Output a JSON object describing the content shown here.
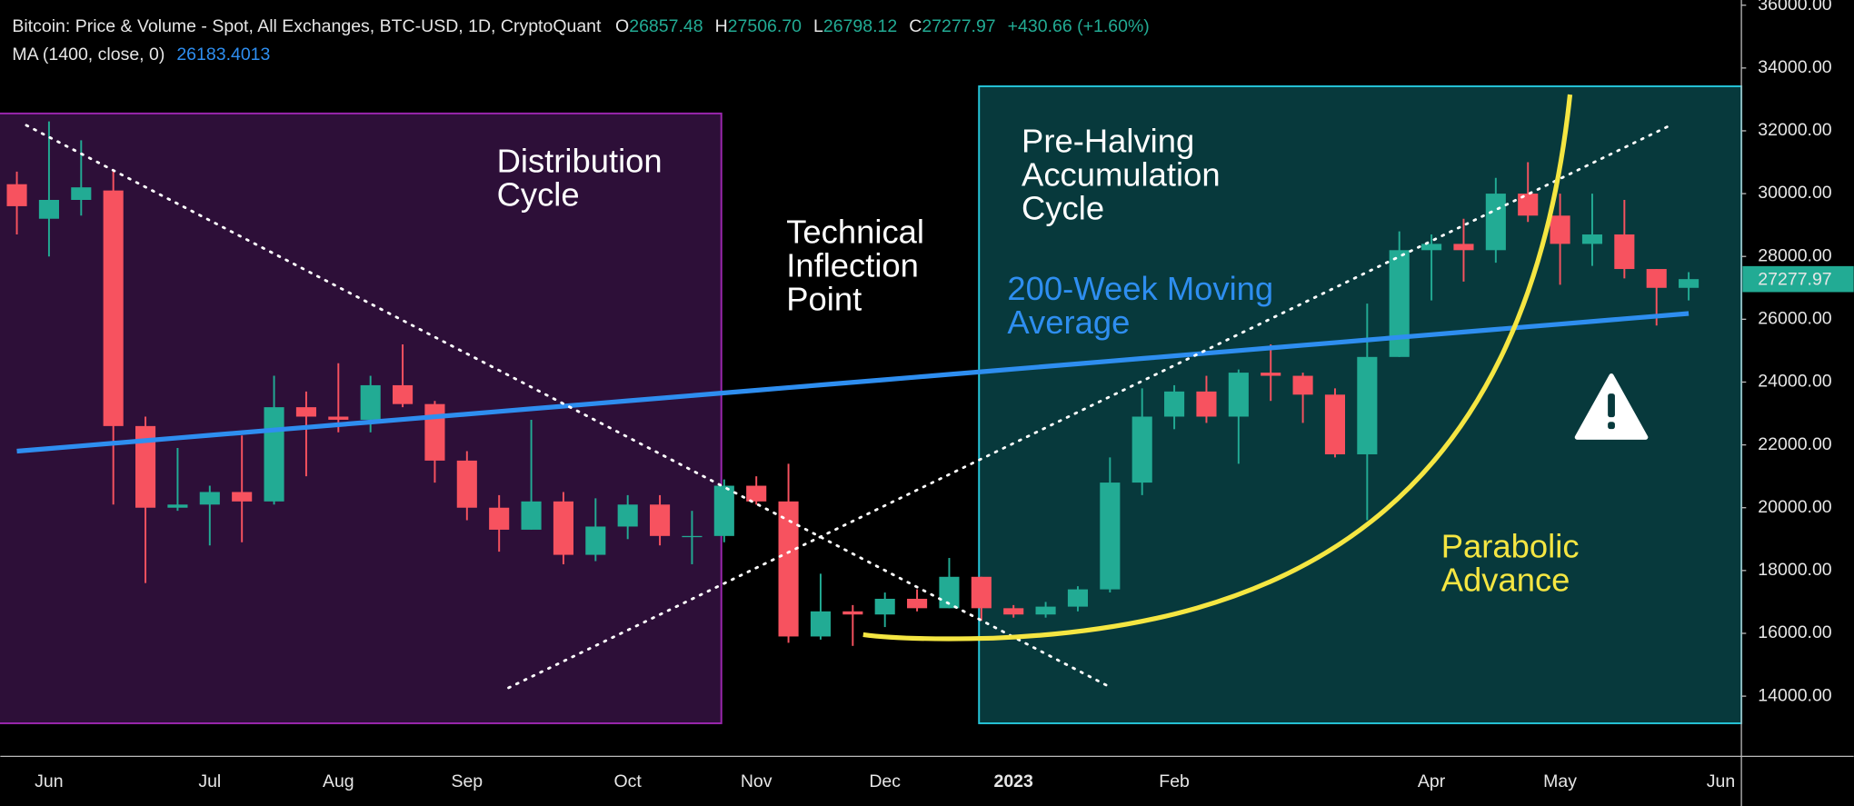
{
  "chart_data": {
    "type": "candlestick",
    "title": "Bitcoin: Price & Volume - Spot, All Exchanges, BTC-USD, 1D, CryptoQuant",
    "ohlc_legend": [
      {
        "label": "O",
        "value": "26857.48"
      },
      {
        "label": "H",
        "value": "27506.70"
      },
      {
        "label": "L",
        "value": "26798.12"
      },
      {
        "label": "C",
        "value": "27277.97"
      }
    ],
    "change": "+430.66 (+1.60%)",
    "up_color": "#22ab94",
    "down_color": "#f7525f",
    "categories": [
      null,
      "Jun",
      null,
      null,
      null,
      null,
      "Jul",
      null,
      null,
      null,
      "Aug",
      null,
      null,
      null,
      "Sep",
      null,
      null,
      null,
      null,
      "Oct",
      null,
      null,
      null,
      "Nov",
      null,
      null,
      null,
      "Dec",
      null,
      null,
      null,
      "2023",
      null,
      null,
      null,
      null,
      "Feb",
      null,
      null,
      null,
      null,
      null,
      null,
      null,
      "Apr",
      null,
      null,
      null,
      "May",
      null,
      null,
      null,
      null,
      "Jun"
    ],
    "open": [
      30300,
      29200,
      29800,
      30100,
      22600,
      20000,
      20100,
      20500,
      20200,
      23200,
      22900,
      22800,
      23900,
      23300,
      21500,
      20000,
      19300,
      20200,
      18500,
      19400,
      20100,
      19100,
      19100,
      20700,
      20200,
      15900,
      16700,
      16600,
      17100,
      16800,
      17800,
      16800,
      16600,
      16850,
      17400,
      20800,
      22900,
      23700,
      22900,
      24300,
      24200,
      23600,
      21700,
      24800,
      28200,
      28400,
      28200,
      30000,
      29300,
      28400,
      28700,
      27600,
      27000,
      null
    ],
    "high": [
      30700,
      32300,
      31700,
      30700,
      22900,
      21900,
      20700,
      22300,
      24200,
      23700,
      24600,
      24200,
      25200,
      23400,
      21800,
      20400,
      22800,
      20500,
      20300,
      20400,
      20400,
      19900,
      20900,
      21000,
      21400,
      17900,
      16900,
      17300,
      17400,
      18400,
      17800,
      16900,
      17000,
      17500,
      21600,
      23800,
      23900,
      24200,
      24400,
      25200,
      24300,
      23800,
      26500,
      28800,
      28700,
      29200,
      30500,
      31000,
      30000,
      30000,
      29800,
      27600,
      27500,
      null
    ],
    "low": [
      28700,
      28000,
      29300,
      20100,
      17600,
      19900,
      18800,
      18900,
      20100,
      21000,
      22400,
      22400,
      23200,
      20800,
      19600,
      18600,
      19300,
      18200,
      18300,
      19000,
      18800,
      18200,
      18900,
      20100,
      15700,
      15800,
      15600,
      16200,
      16700,
      16800,
      16400,
      16500,
      16500,
      16700,
      17300,
      20400,
      22500,
      22700,
      21400,
      23400,
      22700,
      21600,
      19600,
      24800,
      26600,
      27200,
      27800,
      29100,
      27100,
      27700,
      27300,
      25800,
      26600,
      null
    ],
    "close": [
      29600,
      29800,
      30200,
      22600,
      20000,
      20100,
      20500,
      20200,
      23200,
      22900,
      22800,
      23900,
      23300,
      21500,
      20000,
      19300,
      20200,
      18500,
      19400,
      20100,
      19100,
      19100,
      20700,
      20200,
      15900,
      16700,
      16600,
      17100,
      16800,
      17800,
      16800,
      16600,
      16850,
      17400,
      20800,
      22900,
      23700,
      22900,
      24300,
      24200,
      23600,
      21700,
      24800,
      28200,
      28400,
      28200,
      30000,
      29300,
      28400,
      28700,
      27600,
      27000,
      27277.97,
      null
    ],
    "ma": {
      "name": "MA (1400, close, 0)",
      "value_label": "26183.4013",
      "color": "#2e8ef0",
      "values": [
        21800,
        21884,
        21969,
        22053,
        22137,
        22222,
        22306,
        22390,
        22474,
        22559,
        22643,
        22727,
        22812,
        22896,
        22980,
        23065,
        23149,
        23233,
        23317,
        23402,
        23486,
        23570,
        23655,
        23739,
        23823,
        23908,
        23992,
        24076,
        24160,
        24245,
        24329,
        24413,
        24498,
        24582,
        24666,
        24751,
        24835,
        24919,
        25003,
        25088,
        25172,
        25256,
        25341,
        25425,
        25509,
        25594,
        25678,
        25762,
        25846,
        25931,
        26015,
        26099,
        26183,
        null
      ]
    },
    "ylim": [
      12083,
      36165
    ],
    "yticks": [
      {
        "value": 14000,
        "label": "14000.00"
      },
      {
        "value": 16000,
        "label": "16000.00"
      },
      {
        "value": 18000,
        "label": "18000.00"
      },
      {
        "value": 20000,
        "label": "20000.00"
      },
      {
        "value": 22000,
        "label": "22000.00"
      },
      {
        "value": 24000,
        "label": "24000.00"
      },
      {
        "value": 26000,
        "label": "26000.00"
      },
      {
        "value": 28000,
        "label": "28000.00"
      },
      {
        "value": 30000,
        "label": "30000.00"
      },
      {
        "value": 32000,
        "label": "32000.00"
      },
      {
        "value": 34000,
        "label": "34000.00"
      },
      {
        "value": 36000,
        "label": "36000.00"
      }
    ],
    "grid": false,
    "annotations": [
      {
        "lines": [
          "Distribution",
          "Cycle"
        ],
        "color": "#ffffff"
      },
      {
        "lines": [
          "Technical",
          "Inflection",
          "Point"
        ],
        "color": "#ffffff"
      },
      {
        "lines": [
          "Pre-Halving",
          "Accumulation",
          "Cycle"
        ],
        "color": "#ffffff"
      },
      {
        "lines": [
          "200-Week Moving",
          "Average"
        ],
        "color": "#2e8ef0"
      },
      {
        "lines": [
          "Parabolic",
          "Advance"
        ],
        "color": "#f5e642"
      }
    ]
  }
}
